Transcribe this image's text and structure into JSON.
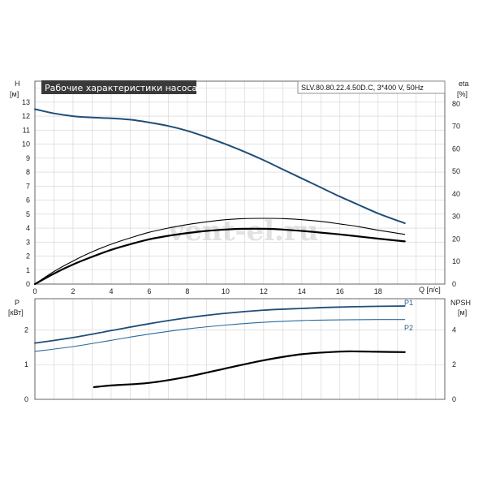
{
  "watermark": "vent-el.ru",
  "chart_data": [
    {
      "type": "line",
      "title": "Рабочие характеристики насоса",
      "model_label": "SLV.80.80.22.4.50D.C, 3*400 V, 50Hz",
      "ylabel": "H",
      "ylabel_unit": "[м]",
      "y2label": "eta",
      "y2label_unit": "[%]",
      "xlabel": "Q [л/с]",
      "xlim": [
        0,
        21.5
      ],
      "ylim": [
        0,
        14.5
      ],
      "y2lim": [
        0,
        90
      ],
      "grid": true,
      "x_ticks": [
        "0",
        "2",
        "4",
        "6",
        "8",
        "10",
        "12",
        "14",
        "16",
        "18"
      ],
      "y_ticks": [
        "0",
        "1",
        "2",
        "3",
        "4",
        "5",
        "6",
        "7",
        "8",
        "9",
        "10",
        "11",
        "12",
        "13"
      ],
      "y2_ticks": [
        "0",
        "10",
        "20",
        "30",
        "40",
        "50",
        "60",
        "70",
        "80"
      ],
      "series": [
        {
          "color": "#1f4e79",
          "x": [
            0,
            1,
            2,
            3,
            4,
            5,
            6,
            7,
            8,
            9,
            10,
            11,
            12,
            13,
            14,
            15,
            16,
            17,
            18,
            19.4
          ],
          "values": [
            12.5,
            12.2,
            12.0,
            11.9,
            11.85,
            11.75,
            11.55,
            11.3,
            10.95,
            10.5,
            10.0,
            9.45,
            8.85,
            8.2,
            7.55,
            6.9,
            6.25,
            5.65,
            5.05,
            4.35
          ]
        },
        {
          "color": "#000000",
          "x": [
            0,
            1,
            2,
            3,
            4,
            5,
            6,
            7,
            8,
            9,
            10,
            11,
            12,
            13,
            14,
            15,
            16,
            17,
            18,
            19.4
          ],
          "values": [
            0,
            0.9,
            1.65,
            2.3,
            2.85,
            3.3,
            3.7,
            4.0,
            4.25,
            4.45,
            4.6,
            4.68,
            4.7,
            4.68,
            4.6,
            4.48,
            4.3,
            4.1,
            3.85,
            3.55
          ]
        },
        {
          "color": "#000000",
          "x": [
            0,
            1,
            2,
            3,
            4,
            5,
            6,
            7,
            8,
            9,
            10,
            11,
            12,
            13,
            14,
            15,
            16,
            17,
            18,
            19.4
          ],
          "values": [
            0,
            0.75,
            1.4,
            1.95,
            2.45,
            2.85,
            3.2,
            3.45,
            3.65,
            3.8,
            3.9,
            3.95,
            3.95,
            3.9,
            3.8,
            3.68,
            3.55,
            3.4,
            3.25,
            3.05
          ]
        }
      ]
    },
    {
      "type": "line",
      "ylabel": "P",
      "ylabel_unit": "[кВт]",
      "y2label": "NPSH",
      "y2label_unit": "[м]",
      "xlim": [
        0,
        21.5
      ],
      "ylim": [
        0,
        2.9
      ],
      "y2lim": [
        0,
        5.8
      ],
      "grid": true,
      "y_ticks": [
        "0",
        "1",
        "2"
      ],
      "y2_ticks": [
        "0",
        "2",
        "4"
      ],
      "series": [
        {
          "name": "P1",
          "color": "#1f4e79",
          "x": [
            0,
            2,
            4,
            6,
            8,
            10,
            12,
            14,
            16,
            18,
            19.4
          ],
          "values": [
            1.62,
            1.78,
            1.98,
            2.18,
            2.35,
            2.48,
            2.57,
            2.62,
            2.66,
            2.68,
            2.69
          ]
        },
        {
          "name": "P2",
          "color": "#2b6a9a",
          "x": [
            0,
            2,
            4,
            6,
            8,
            10,
            12,
            14,
            16,
            18,
            19.4
          ],
          "values": [
            1.38,
            1.52,
            1.7,
            1.88,
            2.03,
            2.14,
            2.22,
            2.27,
            2.29,
            2.3,
            2.3
          ]
        },
        {
          "name": "NPSH",
          "color": "#000000",
          "axis": "right",
          "x": [
            3.1,
            4,
            6,
            8,
            10,
            12,
            14,
            16,
            17,
            18,
            19.4
          ],
          "values": [
            0.7,
            0.8,
            0.95,
            1.3,
            1.78,
            2.25,
            2.6,
            2.75,
            2.76,
            2.74,
            2.72
          ]
        }
      ]
    }
  ]
}
